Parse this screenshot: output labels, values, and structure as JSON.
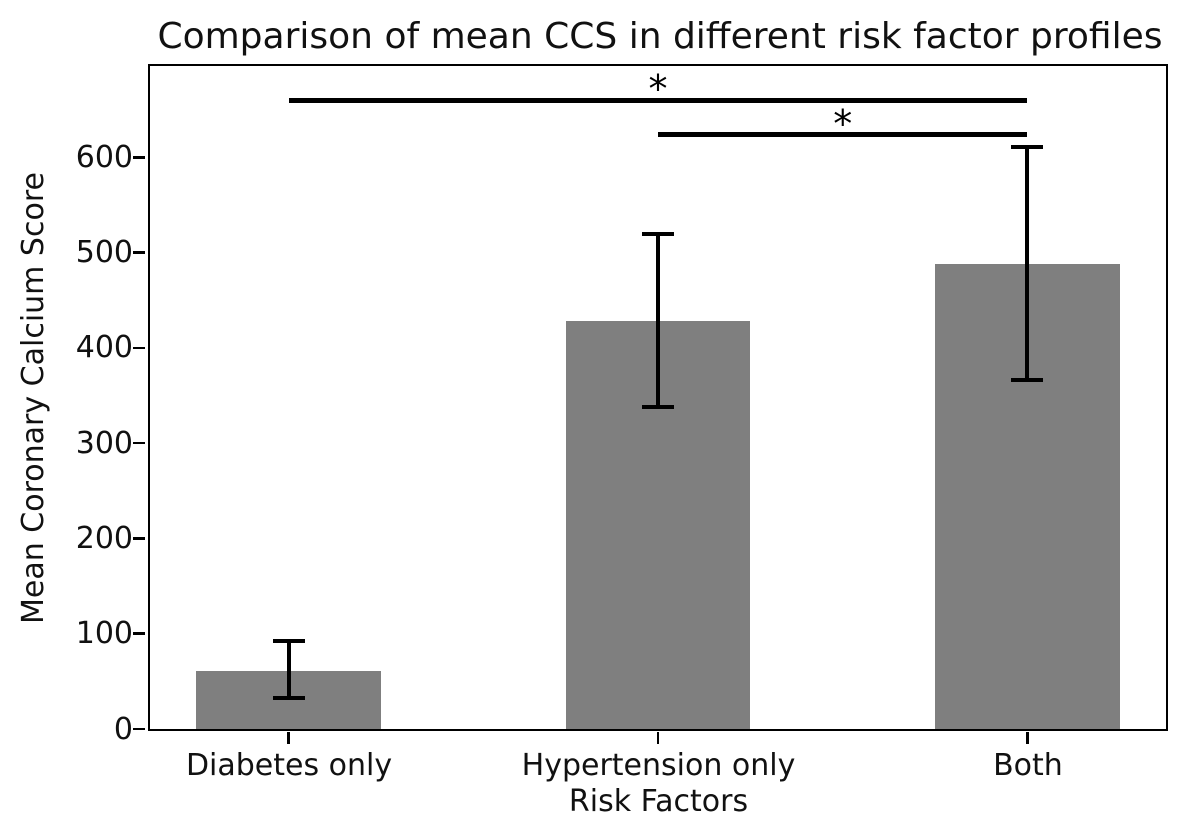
{
  "chart_data": {
    "type": "bar",
    "title": "Comparison of mean CCS in different risk factor profiles",
    "xlabel": "Risk Factors",
    "ylabel": "Mean Coronary Calcium Score",
    "categories": [
      "Diabetes only",
      "Hypertension only",
      "Both"
    ],
    "values": [
      61,
      428,
      488
    ],
    "error_bars": {
      "lower": [
        33,
        338,
        366
      ],
      "upper": [
        92,
        520,
        611
      ]
    },
    "y_ticks": [
      0,
      100,
      200,
      300,
      400,
      500,
      600
    ],
    "ylim": [
      0,
      696
    ],
    "bar_color": "#7f7f7f",
    "line_color": "#000000",
    "bar_width_fraction": 0.5,
    "grid": false,
    "significance_brackets": [
      {
        "from_category": 0,
        "to_category": 2,
        "y_value": 660,
        "label": "*"
      },
      {
        "from_category": 1,
        "to_category": 2,
        "y_value": 624,
        "label": "*"
      }
    ]
  }
}
